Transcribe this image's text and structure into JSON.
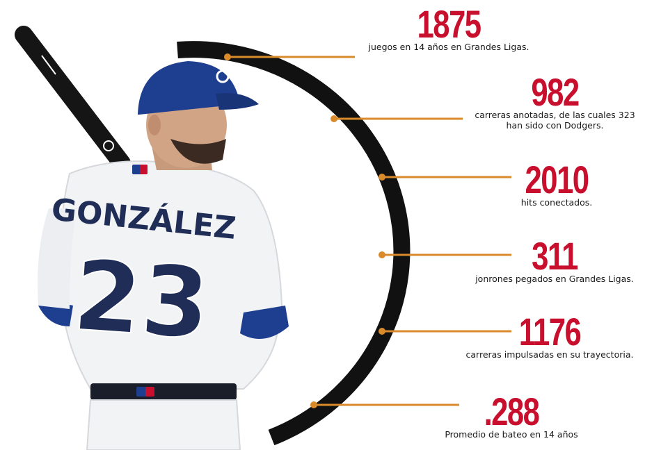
{
  "colors": {
    "accent_red": "#c8102e",
    "connector_orange": "#d98a2b",
    "arc_black": "#111111",
    "jersey_blue": "#1e3f8f",
    "jersey_navy": "#1f2d57",
    "jersey_white": "#f2f3f5"
  },
  "player": {
    "name_on_jersey": "GONZÁLEZ",
    "number": "23"
  },
  "stats": [
    {
      "value": "1875",
      "description": "juegos en 14 años en Grandes Ligas."
    },
    {
      "value": "982",
      "description": "carreras anotadas, de las cuales 323\nhan sido con Dodgers."
    },
    {
      "value": "2010",
      "description": "hits conectados."
    },
    {
      "value": "311",
      "description": "jonrones pegados en Grandes Ligas."
    },
    {
      "value": "1176",
      "description": "carreras impulsadas en su trayectoria."
    },
    {
      "value": ".288",
      "description": "Promedio de bateo en 14 años"
    }
  ],
  "icons": [
    "baseball-bat-icon",
    "mlb-logo-icon"
  ]
}
